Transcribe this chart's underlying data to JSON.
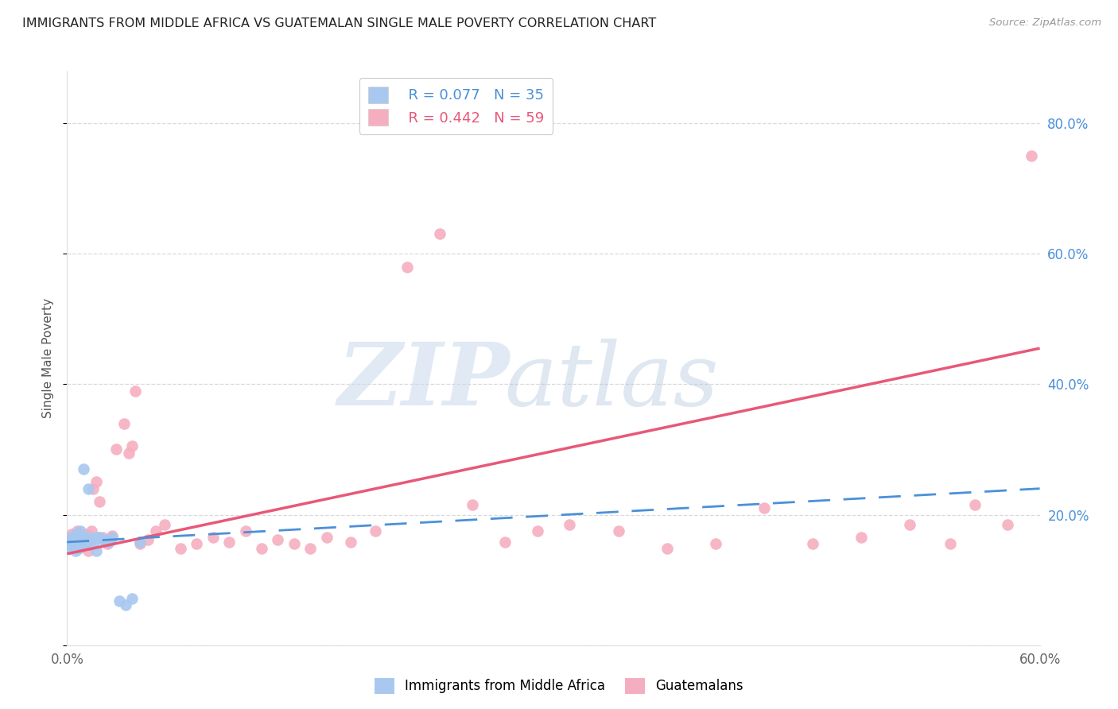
{
  "title": "IMMIGRANTS FROM MIDDLE AFRICA VS GUATEMALAN SINGLE MALE POVERTY CORRELATION CHART",
  "source": "Source: ZipAtlas.com",
  "ylabel": "Single Male Poverty",
  "xlim": [
    0.0,
    0.6
  ],
  "ylim": [
    0.0,
    0.88
  ],
  "x_ticks": [
    0.0,
    0.1,
    0.2,
    0.3,
    0.4,
    0.5,
    0.6
  ],
  "x_tick_labels": [
    "0.0%",
    "",
    "",
    "",
    "",
    "",
    "60.0%"
  ],
  "y_ticks": [
    0.0,
    0.2,
    0.4,
    0.6,
    0.8
  ],
  "y_tick_labels": [
    "",
    "20.0%",
    "40.0%",
    "60.0%",
    "80.0%"
  ],
  "blue_R": 0.077,
  "blue_N": 35,
  "pink_R": 0.442,
  "pink_N": 59,
  "blue_color": "#a8c8f0",
  "pink_color": "#f5aec0",
  "blue_line_color": "#4a90d9",
  "pink_line_color": "#e85878",
  "grid_color": "#d0d0d0",
  "background_color": "#ffffff",
  "blue_scatter_x": [
    0.001,
    0.002,
    0.002,
    0.003,
    0.003,
    0.004,
    0.004,
    0.005,
    0.005,
    0.006,
    0.006,
    0.007,
    0.007,
    0.008,
    0.008,
    0.009,
    0.01,
    0.01,
    0.011,
    0.012,
    0.013,
    0.014,
    0.015,
    0.016,
    0.018,
    0.019,
    0.02,
    0.022,
    0.024,
    0.026,
    0.028,
    0.032,
    0.036,
    0.04,
    0.045
  ],
  "blue_scatter_y": [
    0.155,
    0.16,
    0.148,
    0.165,
    0.155,
    0.158,
    0.152,
    0.17,
    0.145,
    0.162,
    0.155,
    0.168,
    0.148,
    0.175,
    0.158,
    0.162,
    0.27,
    0.158,
    0.165,
    0.155,
    0.24,
    0.155,
    0.165,
    0.155,
    0.145,
    0.165,
    0.165,
    0.162,
    0.16,
    0.158,
    0.165,
    0.068,
    0.062,
    0.072,
    0.158
  ],
  "pink_scatter_x": [
    0.001,
    0.002,
    0.003,
    0.004,
    0.005,
    0.006,
    0.007,
    0.008,
    0.009,
    0.01,
    0.011,
    0.012,
    0.013,
    0.014,
    0.015,
    0.016,
    0.018,
    0.02,
    0.022,
    0.025,
    0.028,
    0.03,
    0.035,
    0.038,
    0.04,
    0.042,
    0.045,
    0.05,
    0.055,
    0.06,
    0.07,
    0.08,
    0.09,
    0.1,
    0.11,
    0.12,
    0.13,
    0.14,
    0.15,
    0.16,
    0.175,
    0.19,
    0.21,
    0.23,
    0.25,
    0.27,
    0.29,
    0.31,
    0.34,
    0.37,
    0.4,
    0.43,
    0.46,
    0.49,
    0.52,
    0.545,
    0.56,
    0.58,
    0.595
  ],
  "pink_scatter_y": [
    0.16,
    0.155,
    0.17,
    0.165,
    0.158,
    0.175,
    0.165,
    0.168,
    0.152,
    0.162,
    0.155,
    0.17,
    0.145,
    0.16,
    0.175,
    0.24,
    0.25,
    0.22,
    0.165,
    0.155,
    0.168,
    0.3,
    0.34,
    0.295,
    0.305,
    0.39,
    0.155,
    0.162,
    0.175,
    0.185,
    0.148,
    0.155,
    0.165,
    0.158,
    0.175,
    0.148,
    0.162,
    0.155,
    0.148,
    0.165,
    0.158,
    0.175,
    0.58,
    0.63,
    0.215,
    0.158,
    0.175,
    0.185,
    0.175,
    0.148,
    0.155,
    0.21,
    0.155,
    0.165,
    0.185,
    0.155,
    0.215,
    0.185,
    0.75
  ]
}
